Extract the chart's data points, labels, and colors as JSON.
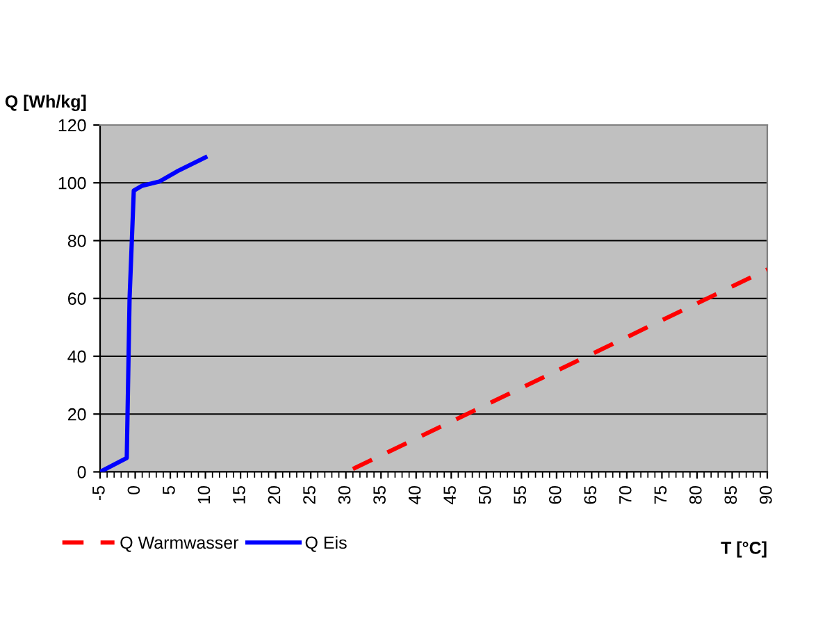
{
  "chart_data": {
    "type": "line",
    "ylabel": "Q [Wh/kg]",
    "xlabel": "T [°C]",
    "series": [
      {
        "name": "Q Warmwasser",
        "color": "#ff0000",
        "line_style": "dashed",
        "x": [
          31,
          90
        ],
        "values": [
          1,
          70
        ]
      },
      {
        "name": "Q Eis",
        "color": "#0000ff",
        "line_style": "solid",
        "x": [
          -5,
          -1.2,
          -0.8,
          -0.2,
          1,
          3.5,
          6,
          10
        ],
        "values": [
          0,
          4.8,
          60,
          97.3,
          99,
          100.5,
          104,
          108.8
        ]
      }
    ],
    "xlim": [
      -5,
      90
    ],
    "xticks": [
      -5,
      0,
      5,
      10,
      15,
      20,
      25,
      30,
      35,
      40,
      45,
      50,
      55,
      60,
      65,
      70,
      75,
      80,
      85,
      90
    ],
    "ylim": [
      0,
      120
    ],
    "yticks": [
      0,
      20,
      40,
      60,
      80,
      100,
      120
    ],
    "grid": "y",
    "legend": "bottom left",
    "marker": "none"
  }
}
